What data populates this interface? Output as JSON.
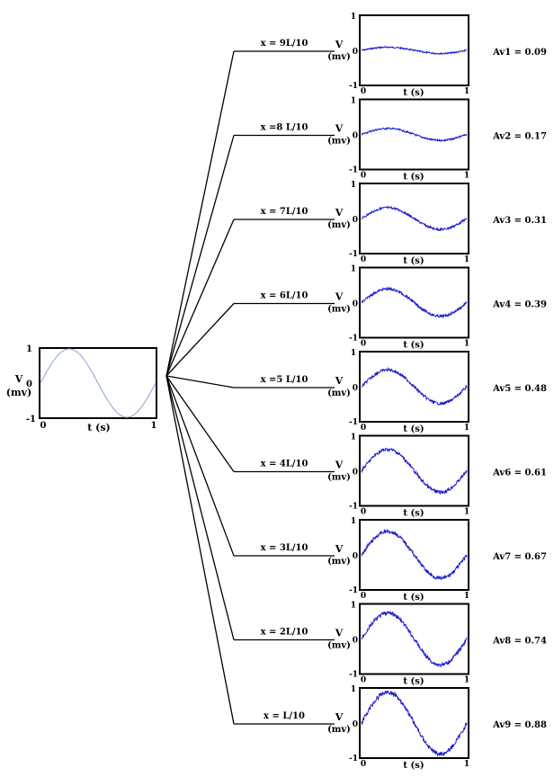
{
  "source": {
    "y_label_line1": "V",
    "y_label_line2": "(mv)",
    "x_label": "t (s)",
    "y_tick_top": "1",
    "y_tick_mid": "0",
    "y_tick_bottom": "-1",
    "x_tick_start": "0",
    "x_tick_end": "1",
    "trace_color": "#8aa0d8"
  },
  "panels": [
    {
      "position_label": "x = 9L/10",
      "gain_label": "Av1 = 0.09",
      "gain": 0.09
    },
    {
      "position_label": "x =8 L/10",
      "gain_label": "Av2 = 0.17",
      "gain": 0.17
    },
    {
      "position_label": "x = 7L/10",
      "gain_label": "Av3 = 0.31",
      "gain": 0.31
    },
    {
      "position_label": "x = 6L/10",
      "gain_label": "Av4 = 0.39",
      "gain": 0.39
    },
    {
      "position_label": "x =5 L/10",
      "gain_label": "Av5 = 0.48",
      "gain": 0.48
    },
    {
      "position_label": "x = 4L/10",
      "gain_label": "Av6 = 0.61",
      "gain": 0.61
    },
    {
      "position_label": "x = 3L/10",
      "gain_label": "Av7 = 0.67",
      "gain": 0.67
    },
    {
      "position_label": "x = 2L/10",
      "gain_label": "Av8 = 0.74",
      "gain": 0.74
    },
    {
      "position_label": "x = L/10",
      "gain_label": "Av9 = 0.88",
      "gain": 0.88
    }
  ],
  "panel_style": {
    "y_label_line1": "V",
    "y_label_line2": "(mv)",
    "x_label": "t (s)",
    "y_tick_top": "1",
    "y_tick_mid": "0",
    "y_tick_bottom": "-1",
    "x_tick_start": "0",
    "x_tick_end": "1",
    "trace_color": "#1a1acc"
  }
}
